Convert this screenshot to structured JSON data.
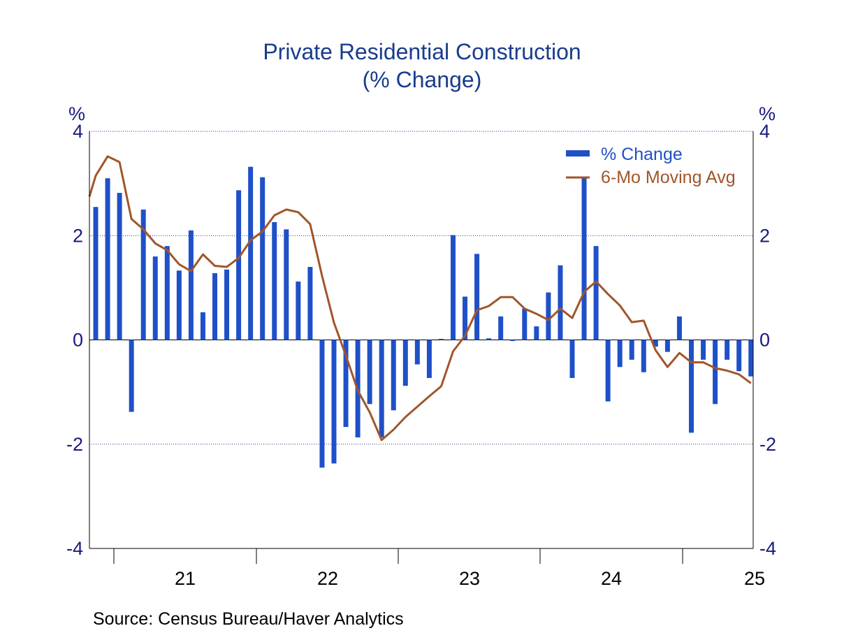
{
  "chart_data": {
    "type": "bar",
    "title": "Private Residential Construction",
    "subtitle": "(% Change)",
    "ylabel_left": "%",
    "ylabel_right": "%",
    "ylim": [
      -4,
      4
    ],
    "yticks": [
      4,
      2,
      0,
      -2,
      -4
    ],
    "ytick_labels": [
      "4",
      "2",
      "0",
      "-2",
      "-4"
    ],
    "xtick_labels": [
      "21",
      "22",
      "23",
      "24",
      "25"
    ],
    "grid": true,
    "legend_position": "top-right",
    "series": [
      {
        "name": "% Change",
        "type": "bar",
        "color": "#1f50c8",
        "values": [
          2.55,
          3.1,
          2.82,
          -1.38,
          2.5,
          1.6,
          1.8,
          1.33,
          2.1,
          0.53,
          1.28,
          1.35,
          2.87,
          3.32,
          3.12,
          2.26,
          2.12,
          1.12,
          1.4,
          -2.45,
          -2.37,
          -1.67,
          -1.87,
          -1.23,
          -1.87,
          -1.35,
          -0.88,
          -0.47,
          -0.73,
          0.02,
          2.01,
          0.83,
          1.65,
          0.03,
          0.45,
          -0.02,
          0.6,
          0.26,
          0.91,
          1.43,
          -0.73,
          3.12,
          1.8,
          -1.18,
          -0.52,
          -0.38,
          -0.62,
          -0.13,
          -0.23,
          0.45,
          -1.78,
          -0.38,
          -1.23,
          -0.38,
          -0.6,
          -0.7
        ]
      },
      {
        "name": "6-Mo Moving Avg",
        "type": "line",
        "color": "#a0562a",
        "values": [
          3.15,
          3.52,
          3.41,
          2.32,
          2.12,
          1.85,
          1.72,
          1.45,
          1.32,
          1.64,
          1.42,
          1.4,
          1.57,
          1.91,
          2.08,
          2.39,
          2.5,
          2.45,
          2.22,
          1.23,
          0.33,
          -0.3,
          -0.97,
          -1.39,
          -1.92,
          -1.72,
          -1.48,
          -1.28,
          -1.08,
          -0.89,
          -0.22,
          0.08,
          0.57,
          0.65,
          0.82,
          0.82,
          0.6,
          0.5,
          0.38,
          0.6,
          0.42,
          0.92,
          1.12,
          0.88,
          0.66,
          0.34,
          0.37,
          -0.2,
          -0.52,
          -0.25,
          -0.43,
          -0.43,
          -0.54,
          -0.59,
          -0.66,
          -0.83
        ]
      }
    ]
  },
  "source": "Source:  Census Bureau/Haver Analytics",
  "legend": {
    "bar_label": "% Change",
    "line_label": "6-Mo Moving Avg"
  }
}
